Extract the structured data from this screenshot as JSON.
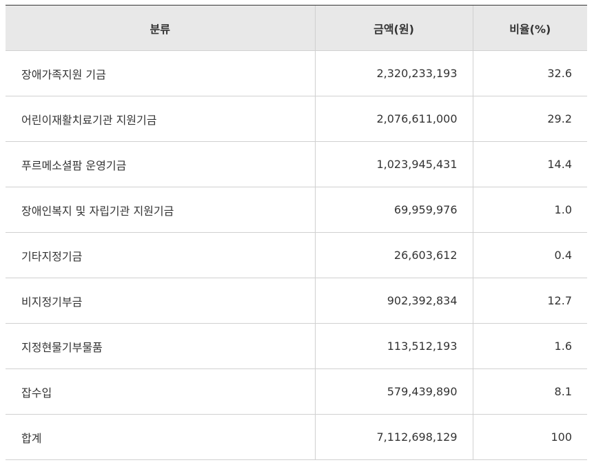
{
  "table": {
    "headers": {
      "category": "분류",
      "amount": "금액(원)",
      "ratio": "비율(%)"
    },
    "rows": [
      {
        "category": "장애가족지원 기금",
        "amount": "2,320,233,193",
        "ratio": "32.6"
      },
      {
        "category": "어린이재활치료기관 지원기금",
        "amount": "2,076,611,000",
        "ratio": "29.2"
      },
      {
        "category": "푸르메소셜팜 운영기금",
        "amount": "1,023,945,431",
        "ratio": "14.4"
      },
      {
        "category": "장애인복지 및 자립기관 지원기금",
        "amount": "69,959,976",
        "ratio": "1.0"
      },
      {
        "category": "기타지정기금",
        "amount": "26,603,612",
        "ratio": "0.4"
      },
      {
        "category": "비지정기부금",
        "amount": "902,392,834",
        "ratio": "12.7"
      },
      {
        "category": "지정현물기부물품",
        "amount": "113,512,193",
        "ratio": "1.6"
      },
      {
        "category": "잡수입",
        "amount": "579,439,890",
        "ratio": "8.1"
      },
      {
        "category": "합계",
        "amount": "7,112,698,129",
        "ratio": "100"
      }
    ]
  }
}
